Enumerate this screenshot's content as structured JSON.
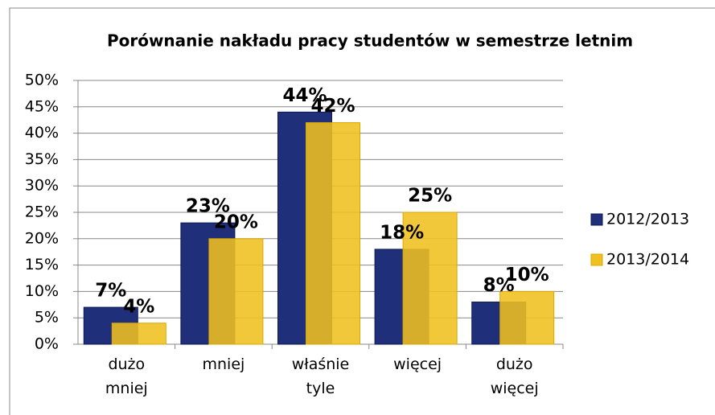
{
  "chart_data": {
    "type": "bar",
    "title": "Porównanie nakładu pracy studentów w semestrze letnim",
    "categories": [
      "dużo mniej",
      "mniej",
      "właśnie tyle",
      "więcej",
      "dużo więcej"
    ],
    "series": [
      {
        "name": "2012/2013",
        "color": "#1f2f7a",
        "values": [
          7,
          23,
          44,
          18,
          8
        ],
        "value_labels": [
          "7%",
          "23%",
          "44%",
          "18%",
          "8%"
        ]
      },
      {
        "name": "2013/2014",
        "color": "#f0c020",
        "values": [
          4,
          20,
          42,
          25,
          10
        ],
        "value_labels": [
          "4%",
          "20%",
          "42%",
          "25%",
          "10%"
        ]
      }
    ],
    "ylim": [
      0,
      50
    ],
    "yticks": [
      {
        "value": 0,
        "label": "0%"
      },
      {
        "value": 5,
        "label": "5%"
      },
      {
        "value": 10,
        "label": "10%"
      },
      {
        "value": 15,
        "label": "15%"
      },
      {
        "value": 20,
        "label": "20%"
      },
      {
        "value": 25,
        "label": "25%"
      },
      {
        "value": 30,
        "label": "30%"
      },
      {
        "value": 35,
        "label": "35%"
      },
      {
        "value": 40,
        "label": "40%"
      },
      {
        "value": 45,
        "label": "45%"
      },
      {
        "value": 50,
        "label": "50%"
      }
    ],
    "grid": true,
    "legend": "right"
  }
}
